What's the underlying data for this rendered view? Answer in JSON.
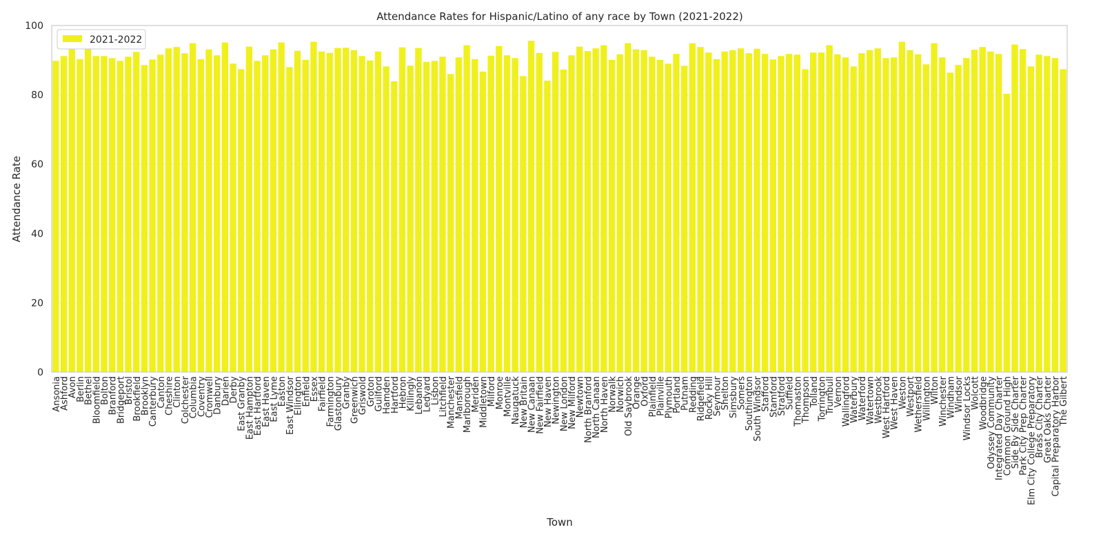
{
  "chart_data": {
    "type": "bar",
    "title": "Attendance Rates for Hispanic/Latino of any race by Town (2021-2022)",
    "xlabel": "Town",
    "ylabel": "Attendance Rate",
    "ylim": [
      0,
      100
    ],
    "yticks": [
      0,
      20,
      40,
      60,
      80,
      100
    ],
    "grid": true,
    "legend_placement": "top-left",
    "bar_color": "#f0f01e",
    "categories": [
      "Ansonia",
      "Ashford",
      "Avon",
      "Berlin",
      "Bethel",
      "Bloomfield",
      "Bolton",
      "Branford",
      "Bridgeport",
      "Bristol",
      "Brookfield",
      "Brooklyn",
      "Canterbury",
      "Canton",
      "Cheshire",
      "Clinton",
      "Colchester",
      "Columbia",
      "Coventry",
      "Cromwell",
      "Danbury",
      "Darien",
      "Derby",
      "East Granby",
      "East Hampton",
      "East Hartford",
      "East Haven",
      "East Lyme",
      "Easton",
      "East Windsor",
      "Ellington",
      "Enfield",
      "Essex",
      "Fairfield",
      "Farmington",
      "Glastonbury",
      "Granby",
      "Greenwich",
      "Griswold",
      "Groton",
      "Guilford",
      "Hamden",
      "Hartford",
      "Hebron",
      "Killingly",
      "Lebanon",
      "Ledyard",
      "Lisbon",
      "Litchfield",
      "Manchester",
      "Mansfield",
      "Marlborough",
      "Meriden",
      "Middletown",
      "Milford",
      "Monroe",
      "Montville",
      "Naugatuck",
      "New Britain",
      "New Canaan",
      "New Fairfield",
      "New Haven",
      "Newington",
      "New London",
      "New Milford",
      "Newtown",
      "North Branford",
      "North Canaan",
      "North Haven",
      "Norwalk",
      "Norwich",
      "Old Saybrook",
      "Orange",
      "Oxford",
      "Plainfield",
      "Plainville",
      "Plymouth",
      "Portland",
      "Putnam",
      "Redding",
      "Ridgefield",
      "Rocky Hill",
      "Seymour",
      "Shelton",
      "Simsbury",
      "Somers",
      "Southington",
      "South Windsor",
      "Stafford",
      "Stamford",
      "Stratford",
      "Suffield",
      "Thomaston",
      "Thompson",
      "Tolland",
      "Torrington",
      "Trumbull",
      "Vernon",
      "Wallingford",
      "Waterbury",
      "Waterford",
      "Watertown",
      "Westbrook",
      "West Hartford",
      "West Haven",
      "Weston",
      "Westport",
      "Wethersfield",
      "Willington",
      "Wilton",
      "Winchester",
      "Windham",
      "Windsor",
      "Windsor Locks",
      "Wolcott",
      "Woodbridge",
      "Odyssey Community",
      "Integrated Day Charter",
      "Common Ground High",
      "Side By Side Charter",
      "Park City Prep Charter",
      "Elm City College Preparatory",
      "Brass City Charter",
      "Great Oaks Charter",
      "Capital Preparatory Harbor",
      "The Gilbert"
    ],
    "series": [
      {
        "name": "2021-2022",
        "values": [
          89.8,
          91.2,
          93.4,
          90.3,
          93.4,
          91.2,
          91.2,
          90.6,
          89.8,
          91.0,
          92.4,
          88.6,
          90.2,
          91.6,
          93.4,
          93.8,
          92.0,
          94.9,
          90.3,
          93.1,
          91.4,
          95.1,
          89.0,
          87.4,
          93.9,
          89.8,
          91.4,
          93.1,
          95.1,
          88.0,
          92.7,
          90.1,
          95.3,
          92.5,
          92.1,
          93.5,
          93.6,
          92.9,
          91.2,
          89.9,
          92.5,
          88.2,
          83.9,
          93.7,
          88.4,
          93.5,
          89.5,
          89.8,
          91.0,
          86.0,
          90.8,
          94.3,
          90.3,
          86.7,
          91.3,
          94.1,
          91.4,
          90.6,
          85.4,
          95.6,
          92.1,
          84.1,
          92.4,
          87.3,
          91.4,
          93.9,
          92.6,
          93.4,
          94.3,
          90.1,
          91.7,
          94.9,
          93.1,
          92.9,
          91.0,
          90.1,
          89.0,
          91.8,
          88.4,
          94.9,
          93.8,
          92.2,
          90.3,
          92.5,
          92.9,
          93.4,
          92.0,
          93.3,
          91.8,
          90.2,
          91.2,
          91.8,
          91.6,
          87.4,
          92.2,
          92.2,
          94.3,
          91.7,
          90.8,
          88.2,
          92.0,
          92.9,
          93.4,
          90.6,
          90.8,
          95.3,
          92.9,
          91.7,
          88.8,
          94.9,
          90.8,
          86.4,
          88.6,
          90.6,
          93.0,
          93.8,
          92.5,
          91.8,
          80.3,
          94.5,
          93.2,
          88.2,
          91.6,
          91.2,
          90.6,
          87.4
        ]
      }
    ]
  }
}
